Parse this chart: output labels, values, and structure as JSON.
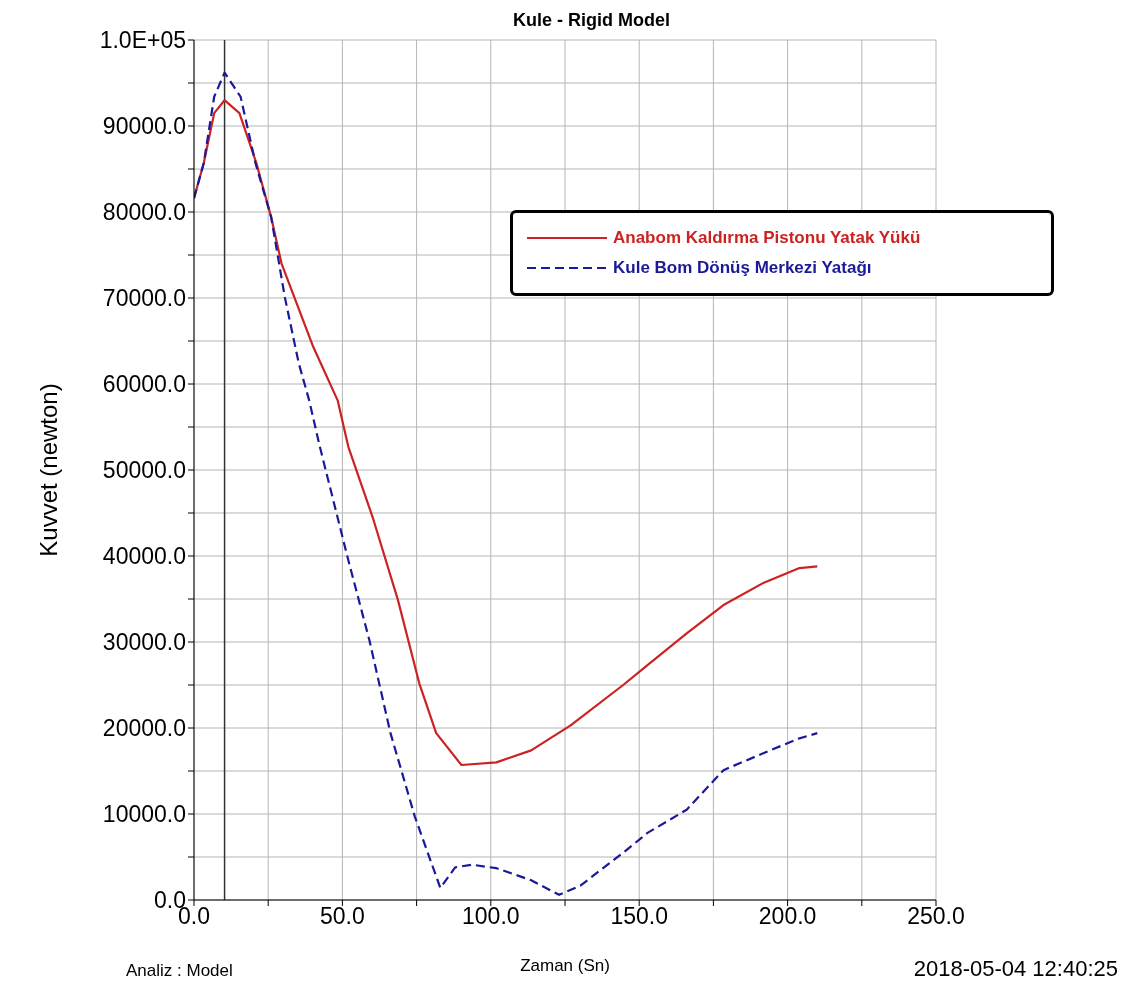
{
  "chart_data": {
    "type": "line",
    "title": "Kule - Rigid Model",
    "xlabel": "Zaman (Sn)",
    "ylabel": "Kuvvet (newton)",
    "annotations": [
      "Analiz : Model",
      "2018-05-04 12:40:25"
    ],
    "xlim": [
      0,
      250
    ],
    "xticks": [
      {
        "value": 0,
        "label": "0.0"
      },
      {
        "value": 25,
        "label": null
      },
      {
        "value": 50,
        "label": "50.0"
      },
      {
        "value": 75,
        "label": null
      },
      {
        "value": 100,
        "label": "100.0"
      },
      {
        "value": 125,
        "label": null
      },
      {
        "value": 150,
        "label": "150.0"
      },
      {
        "value": 175,
        "label": null
      },
      {
        "value": 200,
        "label": "200.0"
      },
      {
        "value": 225,
        "label": null
      },
      {
        "value": 250,
        "label": "250.0"
      }
    ],
    "ylim": [
      0,
      100000
    ],
    "yticks": [
      {
        "value": 0,
        "label": "0.0"
      },
      {
        "value": 5000,
        "label": null
      },
      {
        "value": 10000,
        "label": "10000.0"
      },
      {
        "value": 15000,
        "label": null
      },
      {
        "value": 20000,
        "label": "20000.0"
      },
      {
        "value": 25000,
        "label": null
      },
      {
        "value": 30000,
        "label": "30000.0"
      },
      {
        "value": 35000,
        "label": null
      },
      {
        "value": 40000,
        "label": "40000.0"
      },
      {
        "value": 45000,
        "label": null
      },
      {
        "value": 50000,
        "label": "50000.0"
      },
      {
        "value": 55000,
        "label": null
      },
      {
        "value": 60000,
        "label": "60000.0"
      },
      {
        "value": 65000,
        "label": null
      },
      {
        "value": 70000,
        "label": "70000.0"
      },
      {
        "value": 75000,
        "label": null
      },
      {
        "value": 80000,
        "label": "80000.0"
      },
      {
        "value": 85000,
        "label": null
      },
      {
        "value": 90000,
        "label": "90000.0"
      },
      {
        "value": 95000,
        "label": null
      },
      {
        "value": 100000,
        "label": "1.0E+05"
      }
    ],
    "grid": true,
    "legend": "top right",
    "ref_lines": [
      {
        "axis": "x",
        "value": 10.3,
        "color": "#333333"
      }
    ],
    "series": [
      {
        "name": "Anabom Kaldırma Pistonu Yatak Yükü",
        "color": "#cc2222",
        "line_style": "solid",
        "x": [
          0,
          3.3,
          6.8,
          10.3,
          15.3,
          21,
          26,
          29.5,
          40.2,
          48.4,
          52,
          60.2,
          68.7,
          75.9,
          81.6,
          90.1,
          101.9,
          113.6,
          126.9,
          144.6,
          152.8,
          166,
          178.4,
          192,
          204,
          210
        ],
        "values": [
          81600,
          85700,
          91500,
          93000,
          91500,
          85700,
          79400,
          74000,
          64300,
          58100,
          52700,
          44500,
          34900,
          25200,
          19400,
          15700,
          16000,
          17400,
          20300,
          25000,
          27300,
          31000,
          34300,
          36900,
          38600,
          38800
        ]
      },
      {
        "name": "Kule Bom Dönüş Merkezi Yatağı",
        "color": "#1a1a99",
        "line_style": "dashed",
        "x": [
          0,
          3.3,
          6.8,
          10.3,
          15.7,
          20.7,
          26,
          30.6,
          35.3,
          38.8,
          42.4,
          52,
          59.1,
          66.2,
          74.4,
          83,
          88,
          93.7,
          101.9,
          113.6,
          123,
          130.3,
          144.6,
          152.8,
          166,
          178.4,
          192,
          204,
          210
        ],
        "values": [
          81600,
          85700,
          93400,
          96200,
          93400,
          85700,
          79400,
          70100,
          62400,
          58100,
          52700,
          39500,
          30200,
          19400,
          9700,
          1400,
          3800,
          4100,
          3700,
          2300,
          600,
          1700,
          5500,
          7800,
          10500,
          15100,
          17100,
          18800,
          19400
        ]
      }
    ]
  }
}
